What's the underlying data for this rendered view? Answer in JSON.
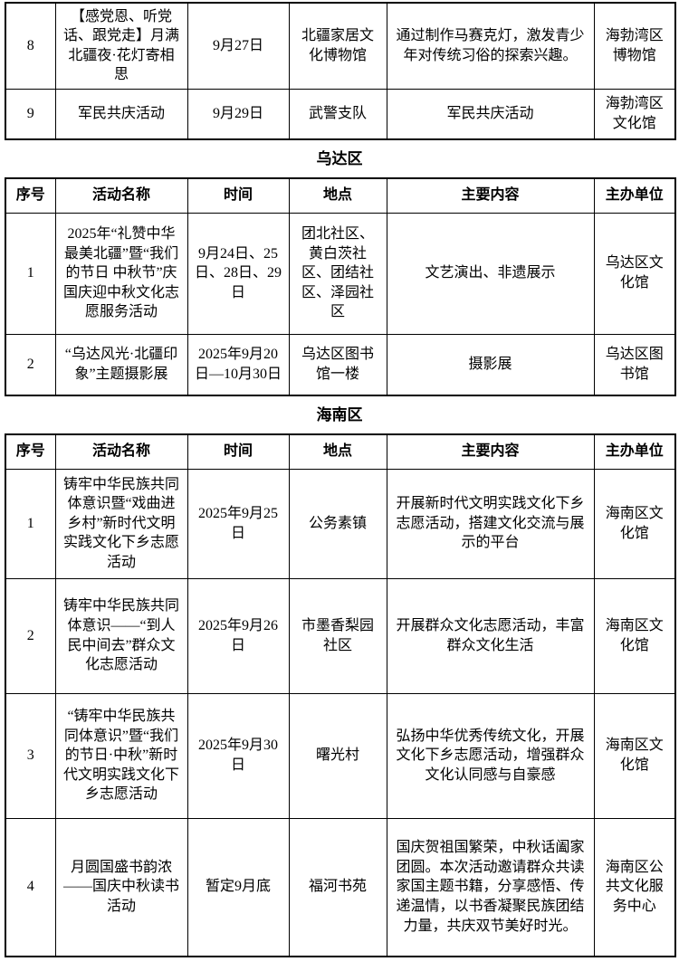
{
  "colors": {
    "background": "#ffffff",
    "text": "#000000",
    "border": "#000000"
  },
  "column_headers": [
    "序号",
    "活动名称",
    "时间",
    "地点",
    "主要内容",
    "主办单位"
  ],
  "continued_table": {
    "rows": [
      {
        "no": "8",
        "name": "【感党恩、听党话、跟党走】月满北疆夜·花灯寄相思",
        "time": "9月27日",
        "place": "北疆家居文化博物馆",
        "content": "通过制作马赛克灯，激发青少年对传统习俗的探索兴趣。",
        "organizer": "海勃湾区博物馆"
      },
      {
        "no": "9",
        "name": "军民共庆活动",
        "time": "9月29日",
        "place": "武警支队",
        "content": "军民共庆活动",
        "organizer": "海勃湾区文化馆"
      }
    ]
  },
  "wuda_section": {
    "title": "乌达区",
    "rows": [
      {
        "no": "1",
        "name": "2025年“礼赞中华 最美北疆”暨“我们的节日 中秋节”庆国庆迎中秋文化志愿服务活动",
        "time": "9月24日、25日、28日、29日",
        "place": "团北社区、黄白茨社区、团结社区、泽园社区",
        "content": "文艺演出、非遗展示",
        "organizer": "乌达区文化馆"
      },
      {
        "no": "2",
        "name": "“乌达风光·北疆印象”主题摄影展",
        "time": "2025年9月20日—10月30日",
        "place": "乌达区图书馆一楼",
        "content": "摄影展",
        "organizer": "乌达区图书馆"
      }
    ]
  },
  "hainan_section": {
    "title": "海南区",
    "rows": [
      {
        "no": "1",
        "name": "铸牢中华民族共同体意识暨“戏曲进乡村”新时代文明实践文化下乡志愿活动",
        "time": "2025年9月25日",
        "place": "公务素镇",
        "content": "开展新时代文明实践文化下乡志愿活动，搭建文化交流与展示的平台",
        "organizer": "海南区文化馆"
      },
      {
        "no": "2",
        "name": "铸牢中华民族共同体意识——“到人民中间去”群众文化志愿活动",
        "time": "2025年9月26日",
        "place": "市墨香梨园社区",
        "content": "开展群众文化志愿活动，丰富群众文化生活",
        "organizer": "海南区文化馆"
      },
      {
        "no": "3",
        "name": "“铸牢中华民族共同体意识”暨“我们的节日·中秋”新时代文明实践文化下乡志愿活动",
        "time": "2025年9月30日",
        "place": "曙光村",
        "content": "弘扬中华优秀传统文化，开展文化下乡志愿活动，增强群众文化认同感与自豪感",
        "organizer": "海南区文化馆"
      },
      {
        "no": "4",
        "name": "月圆国盛书韵浓——国庆中秋读书活动",
        "time": "暂定9月底",
        "place": "福河书苑",
        "content": "国庆贺祖国繁荣，中秋话阖家团圆。本次活动邀请群众共读家国主题书籍，分享感悟、传递温情，以书香凝聚民族团结力量，共庆双节美好时光。",
        "organizer": "海南区公共文化服务中心"
      }
    ]
  }
}
